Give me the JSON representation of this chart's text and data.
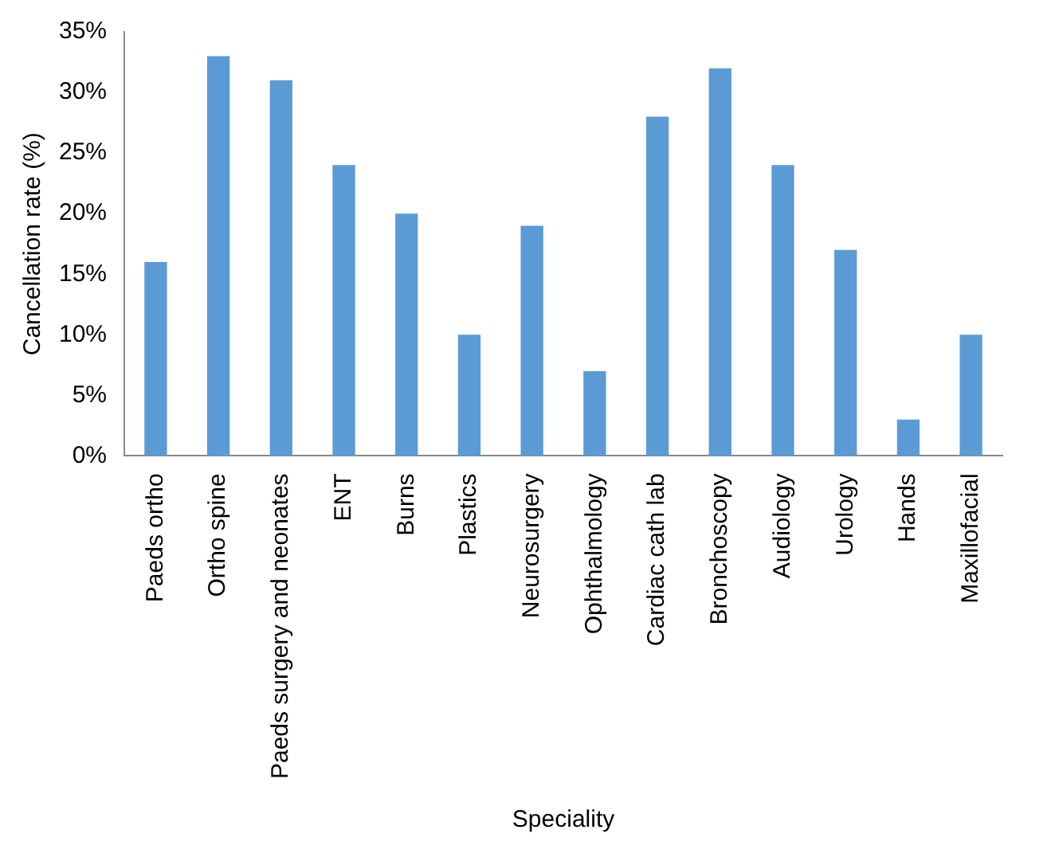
{
  "chart_data": {
    "type": "bar",
    "xlabel": "Speciality",
    "ylabel": "Cancellation rate (%)",
    "categories": [
      "Paeds ortho",
      "Ortho spine",
      "Paeds surgery and neonates",
      "ENT",
      "Burns",
      "Plastics",
      "Neurosurgery",
      "Ophthalmology",
      "Cardiac cath lab",
      "Bronchoscopy",
      "Audiology",
      "Urology",
      "Hands",
      "Maxillofacial"
    ],
    "values": [
      16,
      33,
      31,
      24,
      20,
      10,
      19,
      7,
      28,
      32,
      24,
      17,
      3,
      10
    ],
    "color": "#5b9bd5",
    "ylim": [
      0,
      35
    ],
    "yticks": [
      {
        "value": 0,
        "label": "0%"
      },
      {
        "value": 5,
        "label": "5%"
      },
      {
        "value": 10,
        "label": "10%"
      },
      {
        "value": 15,
        "label": "15%"
      },
      {
        "value": 20,
        "label": "20%"
      },
      {
        "value": 25,
        "label": "25%"
      },
      {
        "value": 30,
        "label": "30%"
      },
      {
        "value": 35,
        "label": "35%"
      }
    ],
    "grid": false,
    "legend": false
  }
}
